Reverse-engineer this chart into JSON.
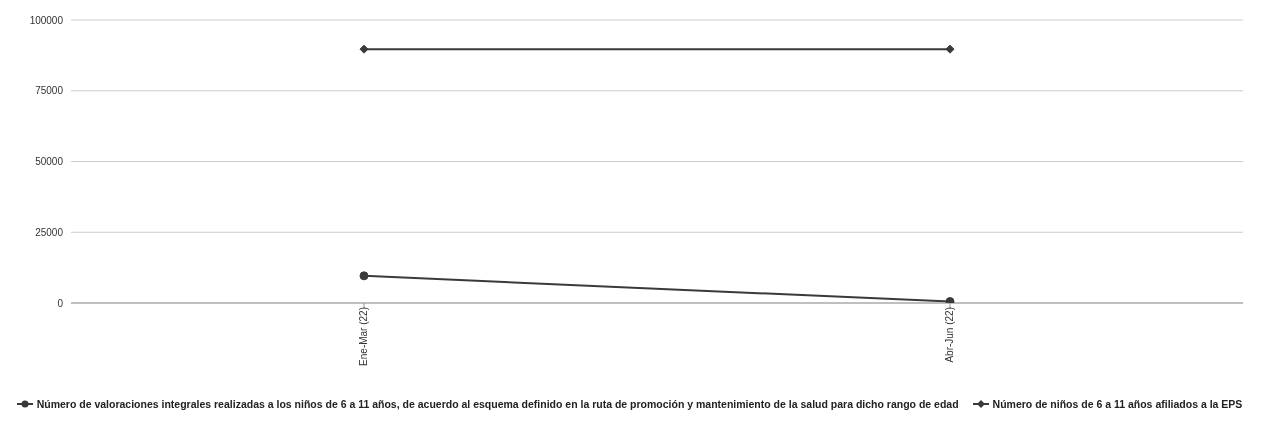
{
  "chart_data": {
    "type": "line",
    "categories": [
      "Ene-Mar (22)",
      "Abr-Jun (22)"
    ],
    "series": [
      {
        "name": "Número de valoraciones integrales realizadas a los niños de 6 a 11 años, de acuerdo al esquema definido en la ruta de promoción y mantenimiento de la salud para dicho rango de edad",
        "color": "#3a3a3a",
        "marker": "circle",
        "values": [
          9600,
          500
        ]
      },
      {
        "name": "Número de niños de 6 a 11 años afiliados a la EPS",
        "color": "#3a3a3a",
        "marker": "diamond",
        "values": [
          89700,
          89700
        ]
      }
    ],
    "ylim": [
      0,
      100000
    ],
    "yticks": [
      0,
      25000,
      50000,
      75000,
      100000
    ],
    "grid": "y",
    "legend": "bottom",
    "line_style": "solid"
  }
}
